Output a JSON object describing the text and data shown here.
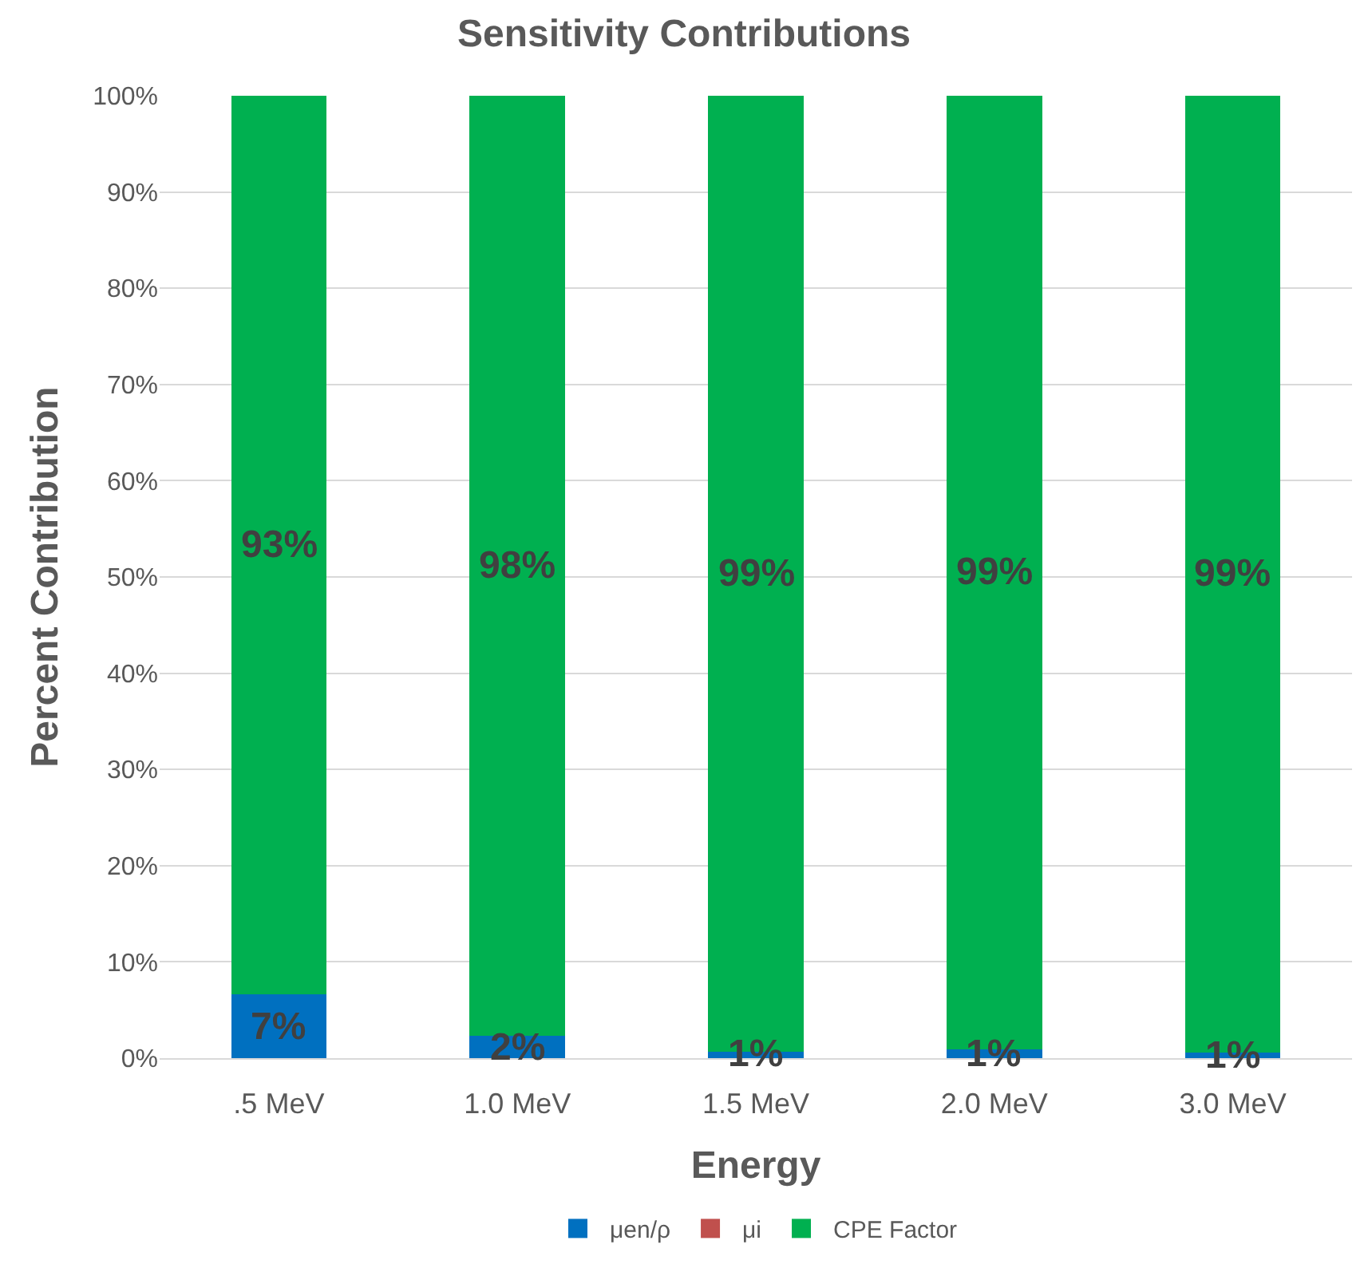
{
  "chart_data": {
    "type": "bar",
    "title": "Sensitivity Contributions",
    "xlabel": "Energy",
    "ylabel": "Percent Contribution",
    "categories": [
      ".5 MeV",
      "1.0 MeV",
      "1.5 MeV",
      "2.0 MeV",
      "3.0 MeV"
    ],
    "stacked": true,
    "series": [
      {
        "name": "μen/ρ",
        "color": "#0070c0",
        "values": [
          6.6,
          2.3,
          0.7,
          0.9,
          0.6
        ],
        "value_labels": [
          "7%",
          "2%",
          "1%",
          "1%",
          "1%"
        ]
      },
      {
        "name": "μi",
        "color": "#c0504d",
        "values": [
          0,
          0,
          0,
          0,
          0
        ],
        "value_labels": [
          null,
          null,
          null,
          null,
          null
        ]
      },
      {
        "name": "CPE Factor",
        "color": "#00b050",
        "values": [
          93.4,
          97.7,
          99.3,
          99.1,
          99.4
        ],
        "value_labels": [
          "93%",
          "98%",
          "99%",
          "99%",
          "99%"
        ]
      }
    ],
    "ylim": [
      0,
      100
    ],
    "yticks": [
      {
        "value": 0,
        "label": "0%"
      },
      {
        "value": 10,
        "label": "10%"
      },
      {
        "value": 20,
        "label": "20%"
      },
      {
        "value": 30,
        "label": "30%"
      },
      {
        "value": 40,
        "label": "40%"
      },
      {
        "value": 50,
        "label": "50%"
      },
      {
        "value": 60,
        "label": "60%"
      },
      {
        "value": 70,
        "label": "70%"
      },
      {
        "value": 80,
        "label": "80%"
      },
      {
        "value": 90,
        "label": "90%"
      },
      {
        "value": 100,
        "label": "100%"
      }
    ],
    "grid": "y",
    "legend": "bottom"
  }
}
